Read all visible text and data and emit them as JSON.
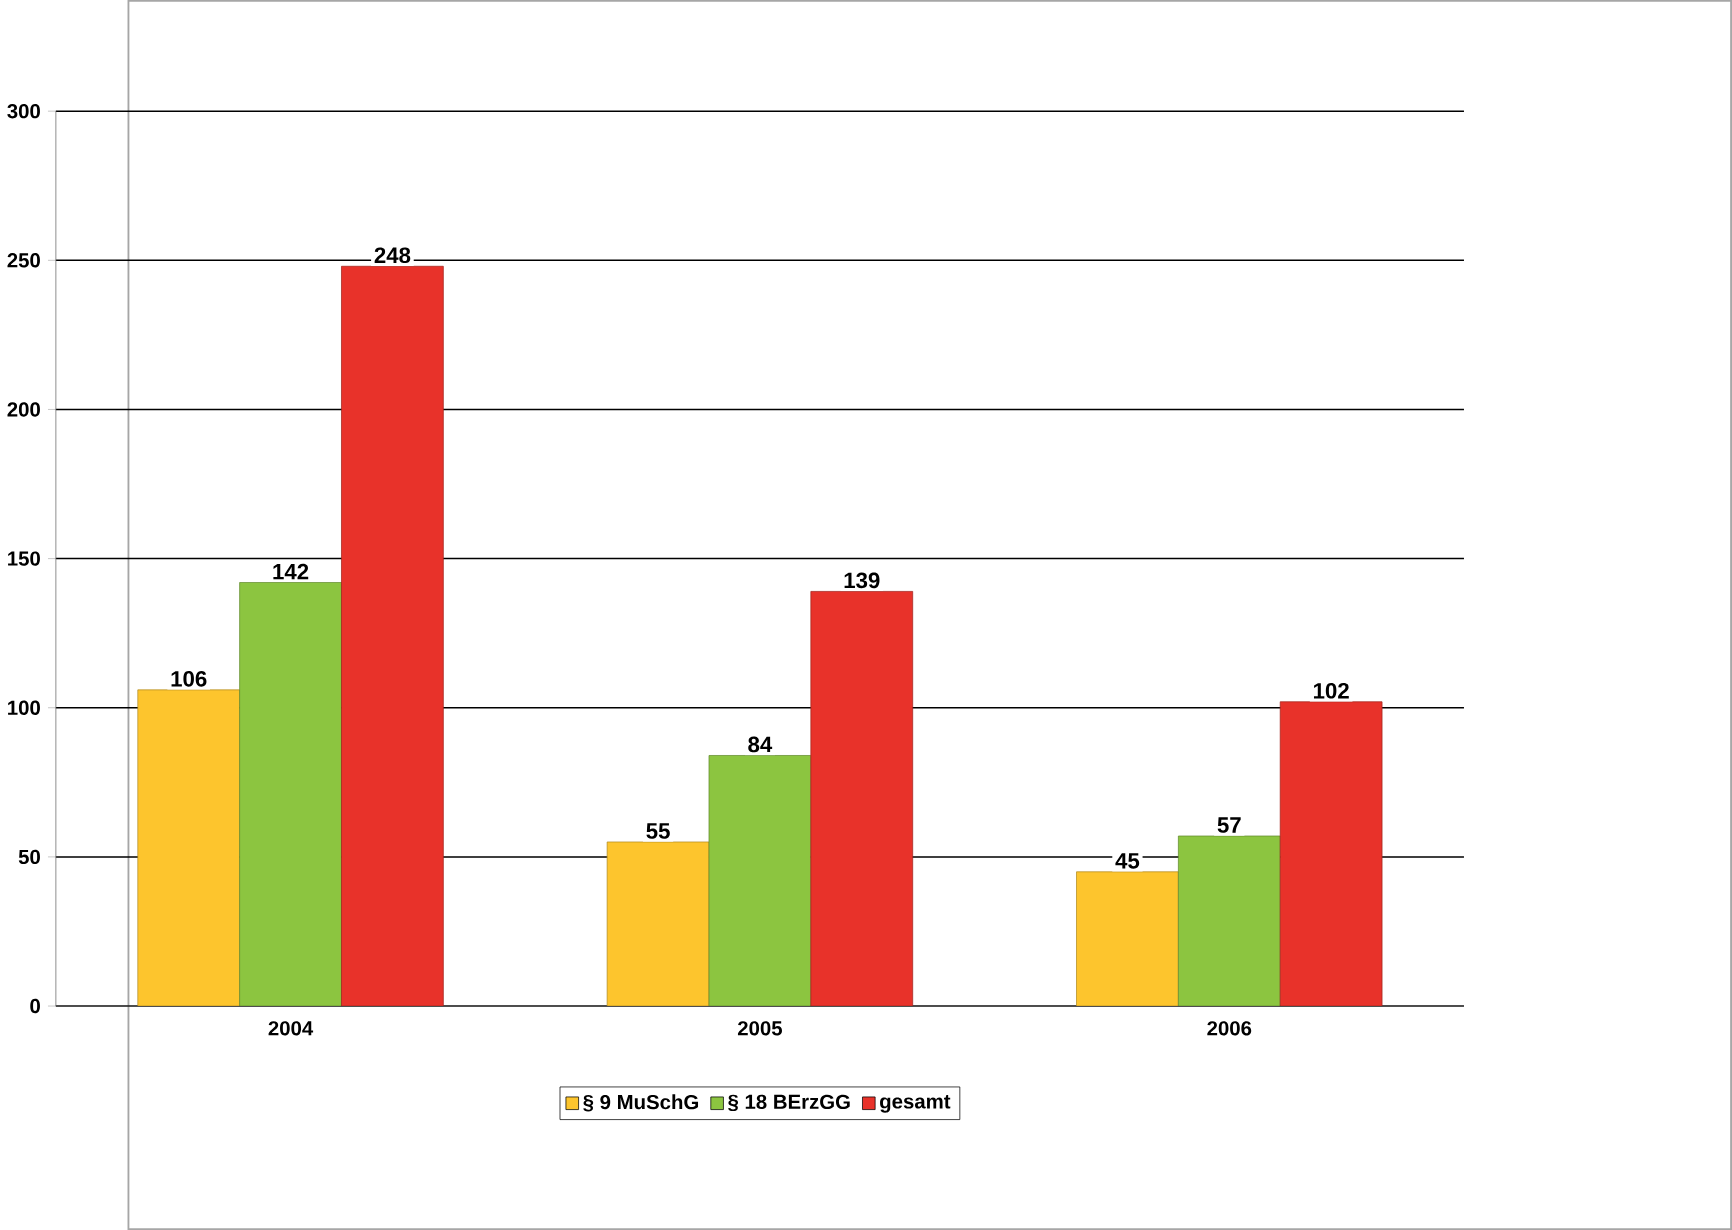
{
  "chart_data": {
    "type": "bar",
    "categories": [
      "2004",
      "2005",
      "2006"
    ],
    "series": [
      {
        "name": "§ 9 MuSchG",
        "color": "#fdc52d",
        "values": [
          106,
          55,
          45
        ]
      },
      {
        "name": "§ 18 BErzGG",
        "color": "#8cc540",
        "values": [
          142,
          84,
          57
        ]
      },
      {
        "name": "gesamt",
        "color": "#e8322a",
        "values": [
          248,
          139,
          102
        ]
      }
    ],
    "ylim": [
      0,
      300
    ],
    "yticks": [
      0,
      50,
      100,
      150,
      200,
      250,
      300
    ],
    "grid": "y",
    "legend": "bottom",
    "data_labels": true
  }
}
